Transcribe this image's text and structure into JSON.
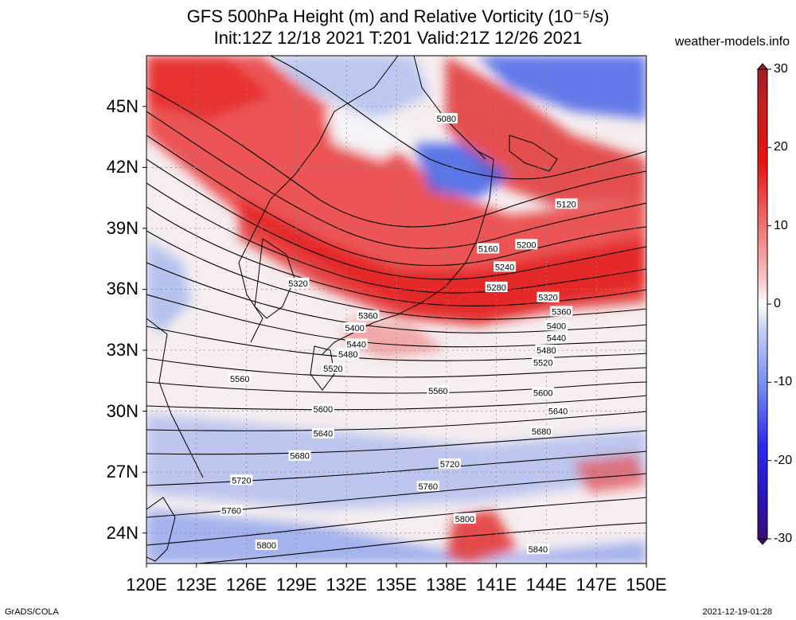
{
  "title": {
    "line1": "GFS 500hPa Height (m) and Relative Vorticity (10⁻⁵/s)",
    "line2": "Init:12Z 12/18 2021 T:201 Valid:21Z 12/26 2021"
  },
  "site": "weather-models.info",
  "footer": {
    "left": "GrADS/COLA",
    "right": "2021-12-19-01:28"
  },
  "map": {
    "lon_range": [
      120,
      150
    ],
    "lat_range": [
      22.5,
      47.5
    ],
    "lat_ticks": [
      {
        "value": 45,
        "label": "45N"
      },
      {
        "value": 42,
        "label": "42N"
      },
      {
        "value": 39,
        "label": "39N"
      },
      {
        "value": 36,
        "label": "36N"
      },
      {
        "value": 33,
        "label": "33N"
      },
      {
        "value": 30,
        "label": "30N"
      },
      {
        "value": 27,
        "label": "27N"
      },
      {
        "value": 24,
        "label": "24N"
      }
    ],
    "lon_ticks": [
      {
        "value": 120,
        "label": "120E"
      },
      {
        "value": 123,
        "label": "123E"
      },
      {
        "value": 126,
        "label": "126E"
      },
      {
        "value": 129,
        "label": "129E"
      },
      {
        "value": 132,
        "label": "132E"
      },
      {
        "value": 135,
        "label": "135E"
      },
      {
        "value": 138,
        "label": "138E"
      },
      {
        "value": 141,
        "label": "141E"
      },
      {
        "value": 144,
        "label": "144E"
      },
      {
        "value": 147,
        "label": "147E"
      },
      {
        "value": 150,
        "label": "150E"
      }
    ],
    "contour_labels": [
      {
        "text": "5080",
        "lon": 138.0,
        "lat": 44.4
      },
      {
        "text": "5120",
        "lon": 145.2,
        "lat": 40.2
      },
      {
        "text": "5160",
        "lon": 140.5,
        "lat": 38.0
      },
      {
        "text": "5200",
        "lon": 142.8,
        "lat": 38.2
      },
      {
        "text": "5240",
        "lon": 141.5,
        "lat": 37.1
      },
      {
        "text": "5280",
        "lon": 141.0,
        "lat": 36.1
      },
      {
        "text": "5320",
        "lon": 129.1,
        "lat": 36.3
      },
      {
        "text": "5320",
        "lon": 144.1,
        "lat": 35.6
      },
      {
        "text": "5360",
        "lon": 133.3,
        "lat": 34.7
      },
      {
        "text": "5360",
        "lon": 144.9,
        "lat": 34.9
      },
      {
        "text": "5400",
        "lon": 132.5,
        "lat": 34.1
      },
      {
        "text": "5400",
        "lon": 144.6,
        "lat": 34.2
      },
      {
        "text": "5440",
        "lon": 132.6,
        "lat": 33.3
      },
      {
        "text": "5440",
        "lon": 144.6,
        "lat": 33.6
      },
      {
        "text": "5480",
        "lon": 132.1,
        "lat": 32.8
      },
      {
        "text": "5480",
        "lon": 144.0,
        "lat": 33.0
      },
      {
        "text": "5520",
        "lon": 131.2,
        "lat": 32.1
      },
      {
        "text": "5520",
        "lon": 143.8,
        "lat": 32.4
      },
      {
        "text": "5560",
        "lon": 125.6,
        "lat": 31.6
      },
      {
        "text": "5560",
        "lon": 137.5,
        "lat": 31.0
      },
      {
        "text": "5600",
        "lon": 130.6,
        "lat": 30.1
      },
      {
        "text": "5600",
        "lon": 143.8,
        "lat": 30.9
      },
      {
        "text": "5640",
        "lon": 130.6,
        "lat": 28.9
      },
      {
        "text": "5640",
        "lon": 144.7,
        "lat": 30.0
      },
      {
        "text": "5680",
        "lon": 129.2,
        "lat": 27.8
      },
      {
        "text": "5680",
        "lon": 143.7,
        "lat": 29.0
      },
      {
        "text": "5720",
        "lon": 125.7,
        "lat": 26.6
      },
      {
        "text": "5720",
        "lon": 138.2,
        "lat": 27.4
      },
      {
        "text": "5760",
        "lon": 125.1,
        "lat": 25.1
      },
      {
        "text": "5760",
        "lon": 136.9,
        "lat": 26.3
      },
      {
        "text": "5800",
        "lon": 127.2,
        "lat": 23.4
      },
      {
        "text": "5800",
        "lon": 139.1,
        "lat": 24.7
      },
      {
        "text": "5840",
        "lon": 143.5,
        "lat": 23.2
      }
    ]
  },
  "colorbar": {
    "ticks": [
      {
        "value": 30,
        "label": "30"
      },
      {
        "value": 20,
        "label": "20"
      },
      {
        "value": 10,
        "label": "10"
      },
      {
        "value": 0,
        "label": "0"
      },
      {
        "value": -10,
        "label": "-10"
      },
      {
        "value": -20,
        "label": "-20"
      },
      {
        "value": -30,
        "label": "-30"
      }
    ],
    "colors": [
      "#4b0082",
      "#2020c8",
      "#3c5ae6",
      "#7896f0",
      "#aebef5",
      "#ffffff",
      "#f5b4b4",
      "#f07878",
      "#e83c3c",
      "#d61414",
      "#b41e28"
    ]
  }
}
